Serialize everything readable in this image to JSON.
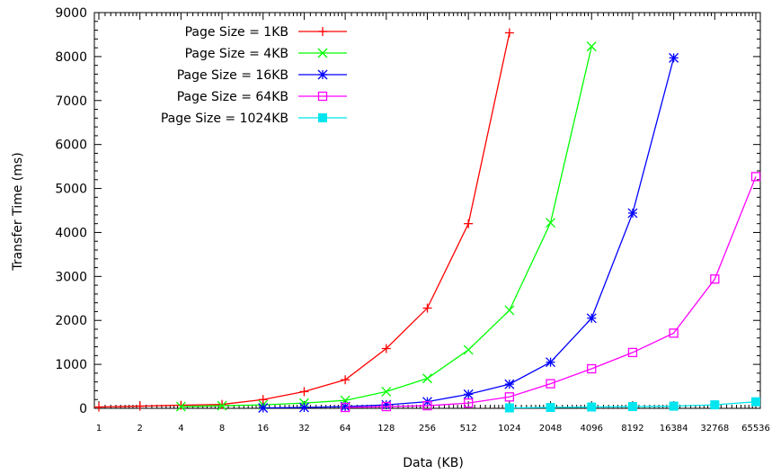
{
  "chart_data": {
    "type": "line",
    "title": "",
    "xlabel": "Data (KB)",
    "ylabel": "Transfer Time (ms)",
    "x_scale": "log2",
    "ylim": [
      0,
      9000
    ],
    "y_ticks": [
      "0",
      "1000",
      "2000",
      "3000",
      "4000",
      "5000",
      "6000",
      "7000",
      "8000",
      "9000"
    ],
    "categories": [
      "1",
      "2",
      "4",
      "8",
      "16",
      "32",
      "64",
      "128",
      "256",
      "512",
      "1024",
      "2048",
      "4096",
      "8192",
      "16384",
      "32768",
      "65536"
    ],
    "grid": false,
    "legend_position": "top-left",
    "series": [
      {
        "name": "Page Size = 1KB",
        "color": "#ff0000",
        "marker": "plus",
        "x": [
          "1",
          "2",
          "4",
          "8",
          "16",
          "32",
          "64",
          "128",
          "256",
          "512",
          "1024"
        ],
        "values": [
          30,
          50,
          70,
          90,
          200,
          380,
          650,
          1360,
          2280,
          4200,
          8540
        ]
      },
      {
        "name": "Page Size = 4KB",
        "color": "#00ff00",
        "marker": "cross",
        "x": [
          "4",
          "8",
          "16",
          "32",
          "64",
          "128",
          "256",
          "512",
          "1024",
          "2048",
          "4096"
        ],
        "values": [
          40,
          60,
          80,
          120,
          180,
          380,
          680,
          1330,
          2230,
          4220,
          8230
        ]
      },
      {
        "name": "Page Size = 16KB",
        "color": "#0000ff",
        "marker": "star",
        "x": [
          "16",
          "32",
          "64",
          "128",
          "256",
          "512",
          "1024",
          "2048",
          "4096",
          "8192",
          "16384"
        ],
        "values": [
          10,
          20,
          40,
          80,
          150,
          320,
          550,
          1050,
          2050,
          4440,
          7970
        ]
      },
      {
        "name": "Page Size = 64KB",
        "color": "#ff00ff",
        "marker": "square-open",
        "x": [
          "64",
          "128",
          "256",
          "512",
          "1024",
          "2048",
          "4096",
          "8192",
          "16384",
          "32768",
          "65536"
        ],
        "values": [
          20,
          40,
          60,
          120,
          260,
          560,
          900,
          1270,
          1710,
          2940,
          5270
        ]
      },
      {
        "name": "Page Size = 1024KB",
        "color": "#00e5ee",
        "marker": "square-filled",
        "x": [
          "1024",
          "2048",
          "4096",
          "8192",
          "16384",
          "32768",
          "65536"
        ],
        "values": [
          10,
          20,
          30,
          40,
          50,
          80,
          150
        ]
      }
    ]
  }
}
